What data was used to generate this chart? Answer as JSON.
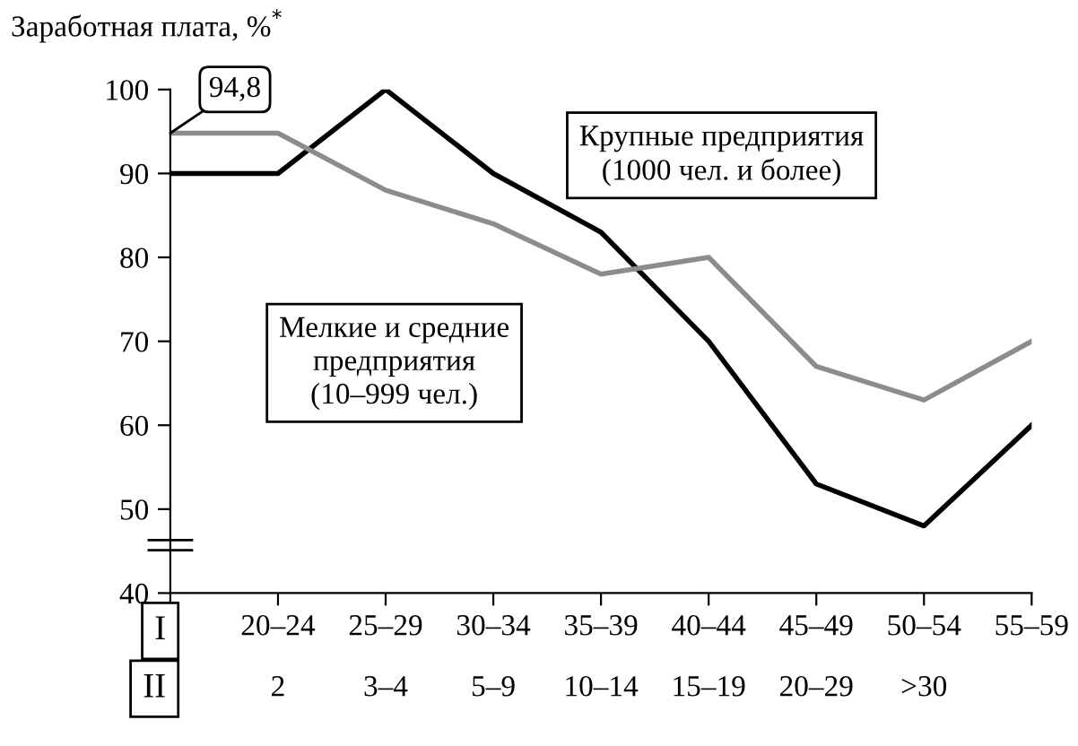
{
  "chart_data": {
    "type": "line",
    "ylabel": "Заработная плата, %$^{*}$",
    "xlabel": "I",
    "x2label": "II",
    "categories": [
      null,
      "20–24",
      "25–29",
      "30–34",
      "35–39",
      "40–44",
      "45–49",
      "50–54",
      "55–59"
    ],
    "ylim": [
      40,
      100
    ],
    "yticks": [
      40,
      50,
      60,
      70,
      80,
      90,
      100
    ],
    "series": [
      {
        "name": "Крупные предприятия\n(1000 чел. и более)",
        "color": "#000000",
        "values": [
          90,
          90,
          100,
          90,
          83,
          70,
          53,
          48,
          60
        ]
      },
      {
        "name": "Мелкие и средние\nпредприятия\n(10–999 чел.)",
        "color": "#8c8c8c",
        "values": [
          94.8,
          94.8,
          88,
          84,
          78,
          80,
          67,
          63,
          70
        ]
      }
    ],
    "annotations": [
      {
        "text": "94,8",
        "y": 94.8
      },
      "2",
      "3–4",
      "5–9",
      "10–14",
      "15–19",
      "20–29",
      ">30"
    ],
    "grid": false,
    "marker": "none",
    "line_style": "solid"
  }
}
